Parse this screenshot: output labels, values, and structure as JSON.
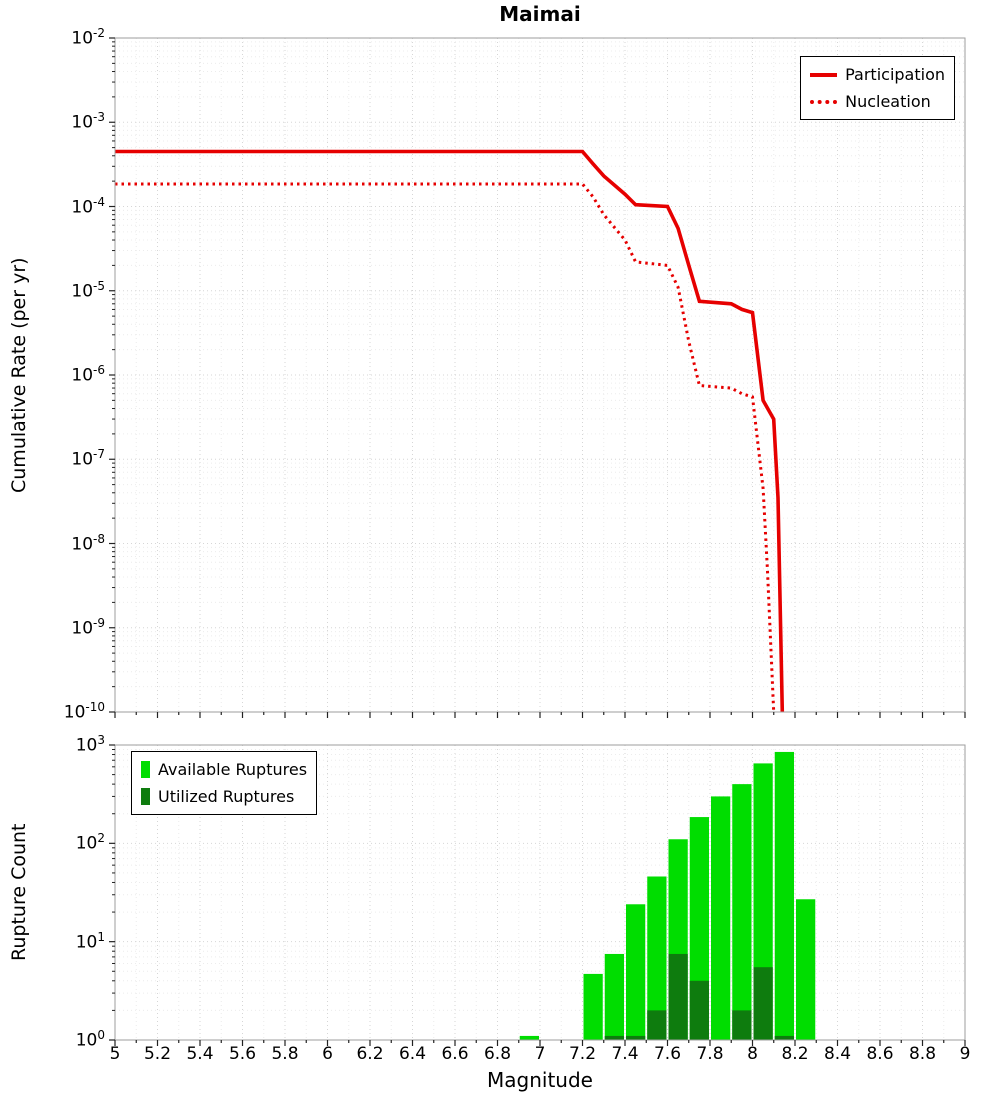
{
  "title": "Maimai",
  "axes": {
    "top_ylabel": "Cumulative Rate (per yr)",
    "bottom_ylabel": "Rupture Count",
    "xlabel": "Magnitude"
  },
  "colors": {
    "participation_line": "#e60000",
    "nucleation_line": "#e60000",
    "available": "#00dd00",
    "utilized": "#0e7c0e",
    "grid_major": "#d6d6d6",
    "grid_minor": "#ececec",
    "plot_border": "#9e9e9e"
  },
  "chart_data": [
    {
      "type": "line",
      "title": "Maimai",
      "xlabel": "",
      "ylabel": "Cumulative Rate (per yr)",
      "xlim": [
        5,
        9
      ],
      "ylog": [
        -10,
        -2
      ],
      "ylim": [
        1e-10,
        0.01
      ],
      "grid": true,
      "legend_position": "top-right",
      "x_ticks": {
        "values": [
          5,
          5.2,
          5.4,
          5.6,
          5.8,
          6,
          6.2,
          6.4,
          6.6,
          6.8,
          7,
          7.2,
          7.4,
          7.6,
          7.8,
          8,
          8.2,
          8.4,
          8.6,
          8.8,
          9
        ],
        "labels": [
          "5",
          "5.2",
          "5.4",
          "5.6",
          "5.8",
          "6",
          "6.2",
          "6.4",
          "6.6",
          "6.8",
          "7",
          "7.2",
          "7.4",
          "7.6",
          "7.8",
          "8",
          "8.2",
          "8.4",
          "8.6",
          "8.8",
          "9"
        ],
        "show_labels": false
      },
      "y_tick_exponents": [
        -2,
        -3,
        -4,
        -5,
        -6,
        -7,
        -8,
        -9,
        -10
      ],
      "series": [
        {
          "name": "Participation",
          "color": "#e60000",
          "line_style": "solid",
          "points": [
            [
              5.0,
              0.00045
            ],
            [
              7.2,
              0.00045
            ],
            [
              7.25,
              0.00032
            ],
            [
              7.3,
              0.00023
            ],
            [
              7.4,
              0.00014
            ],
            [
              7.45,
              0.000105
            ],
            [
              7.6,
              0.0001
            ],
            [
              7.65,
              5.5e-05
            ],
            [
              7.7,
              2e-05
            ],
            [
              7.75,
              7.5e-06
            ],
            [
              7.9,
              7e-06
            ],
            [
              7.95,
              6e-06
            ],
            [
              8.0,
              5.5e-06
            ],
            [
              8.05,
              5e-07
            ],
            [
              8.1,
              3e-07
            ],
            [
              8.12,
              3.5e-08
            ],
            [
              8.14,
              1e-10
            ]
          ]
        },
        {
          "name": "Nucleation",
          "color": "#e60000",
          "line_style": "dotted",
          "points": [
            [
              5.0,
              0.000185
            ],
            [
              7.2,
              0.000185
            ],
            [
              7.25,
              0.00013
            ],
            [
              7.3,
              8e-05
            ],
            [
              7.4,
              4e-05
            ],
            [
              7.45,
              2.2e-05
            ],
            [
              7.6,
              2e-05
            ],
            [
              7.65,
              1.1e-05
            ],
            [
              7.7,
              2.5e-06
            ],
            [
              7.75,
              7.5e-07
            ],
            [
              7.9,
              7e-07
            ],
            [
              7.95,
              6e-07
            ],
            [
              8.0,
              5.5e-07
            ],
            [
              8.05,
              4.5e-08
            ],
            [
              8.07,
              5e-09
            ],
            [
              8.1,
              1e-10
            ]
          ]
        }
      ]
    },
    {
      "type": "bar",
      "title": "",
      "xlabel": "Magnitude",
      "ylabel": "Rupture Count",
      "xlim": [
        5,
        9
      ],
      "ylog": [
        0,
        3
      ],
      "ylim": [
        1,
        1000
      ],
      "grid": true,
      "legend_position": "top-left",
      "bin_width": 0.1,
      "x_ticks": {
        "values": [
          5,
          5.2,
          5.4,
          5.6,
          5.8,
          6,
          6.2,
          6.4,
          6.6,
          6.8,
          7,
          7.2,
          7.4,
          7.6,
          7.8,
          8,
          8.2,
          8.4,
          8.6,
          8.8,
          9
        ],
        "labels": [
          "5",
          "5.2",
          "5.4",
          "5.6",
          "5.8",
          "6",
          "6.2",
          "6.4",
          "6.6",
          "6.8",
          "7",
          "7.2",
          "7.4",
          "7.6",
          "7.8",
          "8",
          "8.2",
          "8.4",
          "8.6",
          "8.8",
          "9"
        ],
        "show_labels": true
      },
      "y_tick_exponents": [
        3,
        2,
        1,
        0
      ],
      "categories": [
        6.95,
        7.25,
        7.35,
        7.45,
        7.55,
        7.65,
        7.75,
        7.85,
        7.95,
        8.05,
        8.15,
        8.25
      ],
      "series": [
        {
          "name": "Available Ruptures",
          "color": "#00dd00",
          "values": [
            1.1,
            4.7,
            7.5,
            24,
            46,
            110,
            185,
            300,
            400,
            650,
            850,
            27
          ]
        },
        {
          "name": "Utilized Ruptures",
          "color": "#0e7c0e",
          "values": [
            0,
            0,
            1.1,
            1.1,
            2,
            7.5,
            4,
            0,
            2,
            5.5,
            1.1,
            0
          ]
        }
      ]
    }
  ]
}
